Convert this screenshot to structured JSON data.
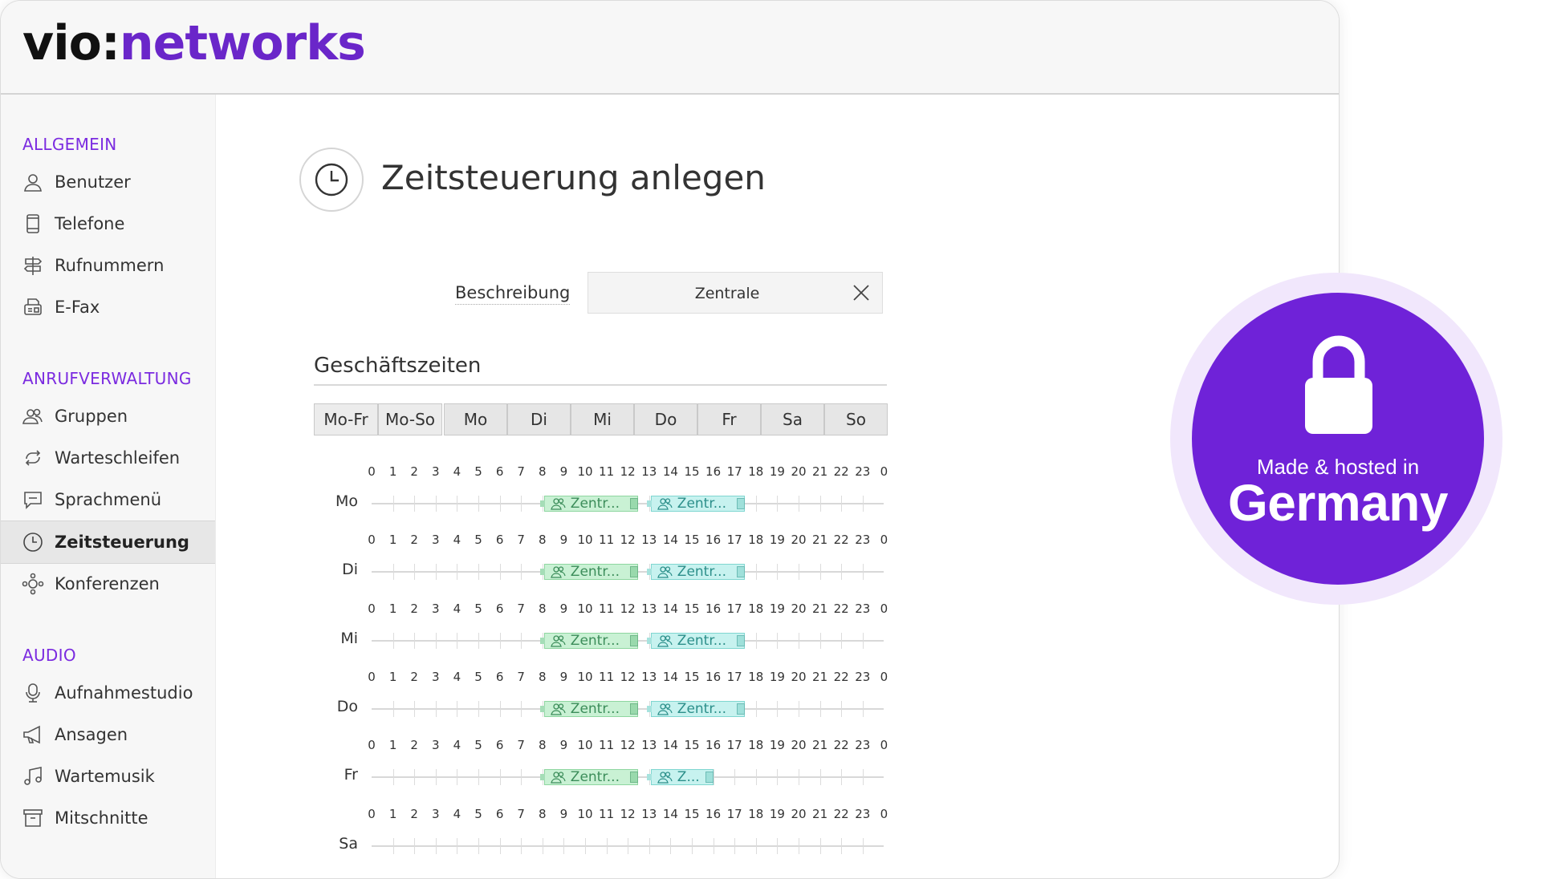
{
  "logo": {
    "part1": "vio:",
    "part2": "networks"
  },
  "sidebar": {
    "sections": [
      {
        "title": "ALLGEMEIN",
        "items": [
          {
            "label": "Benutzer",
            "icon": "user-icon"
          },
          {
            "label": "Telefone",
            "icon": "phone-device-icon"
          },
          {
            "label": "Rufnummern",
            "icon": "signpost-icon"
          },
          {
            "label": "E-Fax",
            "icon": "fax-icon"
          }
        ]
      },
      {
        "title": "ANRUFVERWALTUNG",
        "items": [
          {
            "label": "Gruppen",
            "icon": "group-icon"
          },
          {
            "label": "Warteschleifen",
            "icon": "loop-icon"
          },
          {
            "label": "Sprachmenü",
            "icon": "speech-menu-icon"
          },
          {
            "label": "Zeitsteuerung",
            "icon": "clock-icon",
            "active": true
          },
          {
            "label": "Konferenzen",
            "icon": "conference-icon"
          }
        ]
      },
      {
        "title": "AUDIO",
        "items": [
          {
            "label": "Aufnahmestudio",
            "icon": "microphone-icon"
          },
          {
            "label": "Ansagen",
            "icon": "megaphone-icon"
          },
          {
            "label": "Wartemusik",
            "icon": "music-icon"
          },
          {
            "label": "Mitschnitte",
            "icon": "archive-icon"
          }
        ]
      }
    ]
  },
  "page": {
    "title": "Zeitsteuerung anlegen"
  },
  "form": {
    "description_label": "Beschreibung",
    "description_value": "Zentrale"
  },
  "schedule": {
    "heading": "Geschäftszeiten",
    "tabs": [
      "Mo-Fr",
      "Mo-So",
      "Mo",
      "Di",
      "Mi",
      "Do",
      "Fr",
      "Sa",
      "So"
    ],
    "hours": [
      "0",
      "1",
      "2",
      "3",
      "4",
      "5",
      "6",
      "7",
      "8",
      "9",
      "10",
      "11",
      "12",
      "13",
      "14",
      "15",
      "16",
      "17",
      "18",
      "19",
      "20",
      "21",
      "22",
      "23",
      "0"
    ],
    "days": [
      {
        "label": "Mo",
        "blocks": [
          {
            "start": 8,
            "end": 12.5,
            "text": "Zentr...",
            "color": "green"
          },
          {
            "start": 13,
            "end": 17.5,
            "text": "Zentr...",
            "color": "teal"
          }
        ]
      },
      {
        "label": "Di",
        "blocks": [
          {
            "start": 8,
            "end": 12.5,
            "text": "Zentr...",
            "color": "green"
          },
          {
            "start": 13,
            "end": 17.5,
            "text": "Zentr...",
            "color": "teal"
          }
        ]
      },
      {
        "label": "Mi",
        "blocks": [
          {
            "start": 8,
            "end": 12.5,
            "text": "Zentr...",
            "color": "green"
          },
          {
            "start": 13,
            "end": 17.5,
            "text": "Zentr...",
            "color": "teal"
          }
        ]
      },
      {
        "label": "Do",
        "blocks": [
          {
            "start": 8,
            "end": 12.5,
            "text": "Zentr...",
            "color": "green"
          },
          {
            "start": 13,
            "end": 17.5,
            "text": "Zentr...",
            "color": "teal"
          }
        ]
      },
      {
        "label": "Fr",
        "blocks": [
          {
            "start": 8,
            "end": 12.5,
            "text": "Zentr...",
            "color": "green"
          },
          {
            "start": 13,
            "end": 16,
            "text": "Z...",
            "color": "teal"
          }
        ]
      },
      {
        "label": "Sa",
        "blocks": []
      }
    ]
  },
  "badge": {
    "line1": "Made & hosted in",
    "line2": "Germany"
  },
  "colors": {
    "brand": "#6f22d8",
    "accent": "#7b2be0"
  }
}
